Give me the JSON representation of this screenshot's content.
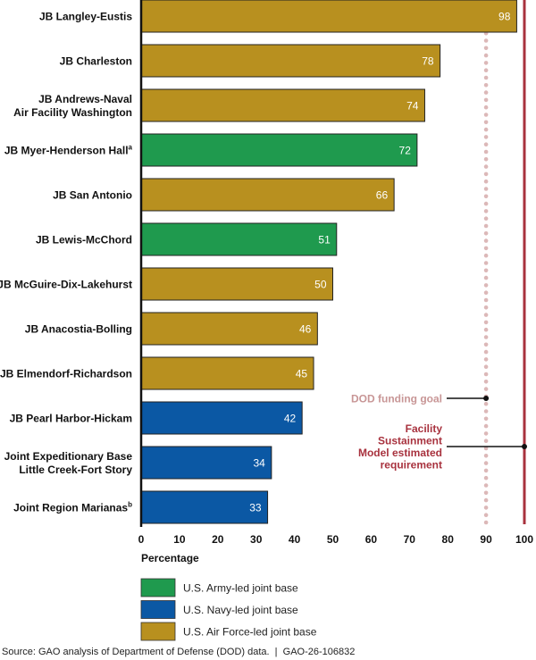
{
  "chart_data": {
    "type": "bar",
    "orientation": "horizontal",
    "xlabel": "Percentage",
    "xlim": [
      0,
      100
    ],
    "xticks": [
      0,
      10,
      20,
      30,
      40,
      50,
      60,
      70,
      80,
      90,
      100
    ],
    "grid": false,
    "categories": [
      {
        "label": [
          "JB Langley-Eustis"
        ],
        "sup": "",
        "value": 98,
        "group": "airforce"
      },
      {
        "label": [
          "JB Charleston"
        ],
        "sup": "",
        "value": 78,
        "group": "airforce"
      },
      {
        "label": [
          "JB Andrews-Naval",
          "Air Facility Washington"
        ],
        "sup": "",
        "value": 74,
        "group": "airforce"
      },
      {
        "label": [
          "JB Myer-Henderson Hall"
        ],
        "sup": "a",
        "value": 72,
        "group": "army"
      },
      {
        "label": [
          "JB San Antonio"
        ],
        "sup": "",
        "value": 66,
        "group": "airforce"
      },
      {
        "label": [
          "JB Lewis-McChord"
        ],
        "sup": "",
        "value": 51,
        "group": "army"
      },
      {
        "label": [
          "JB McGuire-Dix-Lakehurst"
        ],
        "sup": "",
        "value": 50,
        "group": "airforce"
      },
      {
        "label": [
          "JB Anacostia-Bolling"
        ],
        "sup": "",
        "value": 46,
        "group": "airforce"
      },
      {
        "label": [
          "JB Elmendorf-Richardson"
        ],
        "sup": "",
        "value": 45,
        "group": "airforce"
      },
      {
        "label": [
          "JB Pearl Harbor-Hickam"
        ],
        "sup": "",
        "value": 42,
        "group": "navy"
      },
      {
        "label": [
          "Joint Expeditionary Base",
          "Little Creek-Fort Story"
        ],
        "sup": "",
        "value": 34,
        "group": "navy"
      },
      {
        "label": [
          "Joint Region Marianas"
        ],
        "sup": "b",
        "value": 33,
        "group": "navy"
      }
    ],
    "reference_lines": [
      {
        "value": 90,
        "style": "dotted",
        "color": "#dcb8b8",
        "label": [
          "DOD funding goal"
        ],
        "label_color": "#c89696"
      },
      {
        "value": 100,
        "style": "solid",
        "color": "#a8323e",
        "label": [
          "Facility",
          "Sustainment",
          "Model estimated",
          "requirement"
        ],
        "label_color": "#a8323e"
      }
    ],
    "legend": {
      "placement": "bottom",
      "items": [
        {
          "key": "army",
          "label": "U.S. Army-led joint base",
          "color": "#1f9a4e"
        },
        {
          "key": "navy",
          "label": "U.S. Navy-led joint base",
          "color": "#0b58a4"
        },
        {
          "key": "airforce",
          "label": "U.S. Air Force-led joint base",
          "color": "#b8901f"
        }
      ]
    }
  },
  "source": "Source: GAO analysis of Department of Defense (DOD) data.  |  GAO-26-106832"
}
